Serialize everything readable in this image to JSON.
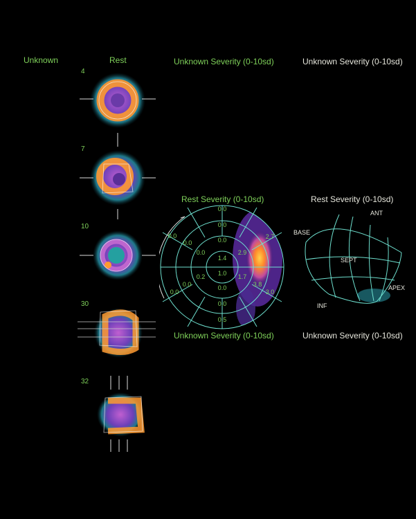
{
  "headers": {
    "col1": "Unknown",
    "col2": "Rest",
    "col3": "Unknown Severity (0-10sd)",
    "col4": "Unknown Severity (0-10sd)"
  },
  "slices": [
    {
      "number": "4",
      "type": "short-axis"
    },
    {
      "number": "7",
      "type": "short-axis"
    },
    {
      "number": "10",
      "type": "short-axis"
    },
    {
      "number": "30",
      "type": "long-axis-horizontal"
    },
    {
      "number": "32",
      "type": "long-axis-vertical"
    }
  ],
  "polar": {
    "title": "Rest Severity (0-10sd)",
    "values": [
      "0.0",
      "0.0",
      "0.0",
      "2.7",
      "0.0",
      "0.0",
      "0.0",
      "2.9",
      "1.4",
      "1.0",
      "0.2",
      "1.7",
      "3.8",
      "0.0",
      "0.0",
      "0.0",
      "3.0",
      "0.0",
      "0.5"
    ]
  },
  "surface": {
    "title": "Rest Severity (0-10sd)",
    "labels": {
      "ant": "ANT",
      "base": "BASE",
      "sept": "SEPT",
      "apex": "APEX",
      "inf": "INF"
    }
  },
  "footers": {
    "left": "Unknown Severity (0-10sd)",
    "right": "Unknown Severity (0-10sd)"
  },
  "colors": {
    "label_green": "#7fd15a",
    "grid_cyan": "#6ee0cf",
    "label_light": "#e6e6dc"
  }
}
